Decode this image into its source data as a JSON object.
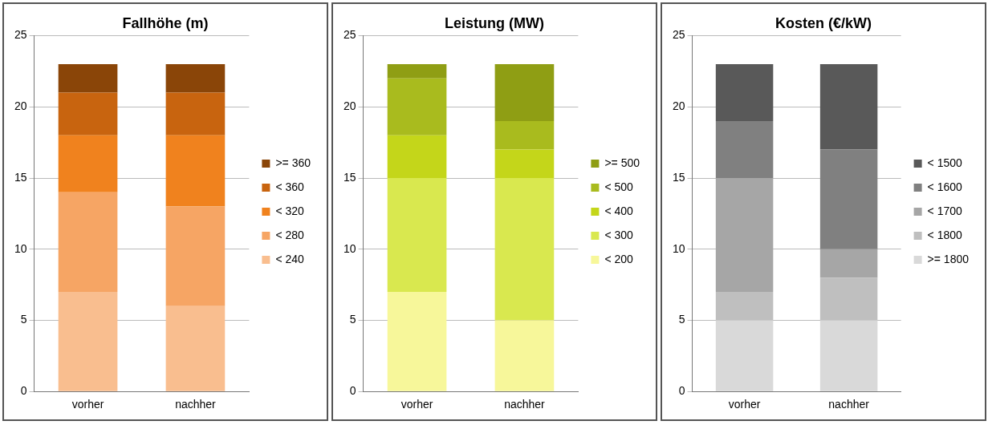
{
  "chart_data": [
    {
      "type": "bar",
      "title": "Fallhöhe (m)",
      "categories": [
        "vorher",
        "nachher"
      ],
      "stacked": true,
      "legend": "right",
      "grid": "y",
      "ylim": [
        0,
        25
      ],
      "yticks": [
        0,
        5,
        10,
        15,
        20,
        25
      ],
      "series": [
        {
          "name": "< 240",
          "color": "#f9be8f",
          "values": [
            7,
            6
          ]
        },
        {
          "name": "< 280",
          "color": "#f6a564",
          "values": [
            7,
            7
          ]
        },
        {
          "name": "< 320",
          "color": "#f0821e",
          "values": [
            4,
            5
          ]
        },
        {
          "name": "< 360",
          "color": "#c8640f",
          "values": [
            3,
            3
          ]
        },
        {
          "name": ">= 360",
          "color": "#8a4508",
          "values": [
            2,
            2
          ]
        }
      ]
    },
    {
      "type": "bar",
      "title": "Leistung (MW)",
      "categories": [
        "vorher",
        "nachher"
      ],
      "stacked": true,
      "legend": "right",
      "grid": "y",
      "ylim": [
        0,
        25
      ],
      "yticks": [
        0,
        5,
        10,
        15,
        20,
        25
      ],
      "series": [
        {
          "name": "< 200",
          "color": "#f7f79a",
          "values": [
            7,
            5
          ]
        },
        {
          "name": "< 300",
          "color": "#d9e84f",
          "values": [
            8,
            10
          ]
        },
        {
          "name": "< 400",
          "color": "#c4d61a",
          "values": [
            3,
            2
          ]
        },
        {
          "name": "< 500",
          "color": "#a9bb1e",
          "values": [
            4,
            2
          ]
        },
        {
          "name": ">= 500",
          "color": "#8f9e14",
          "values": [
            1,
            4
          ]
        }
      ]
    },
    {
      "type": "bar",
      "title": "Kosten (€/kW)",
      "categories": [
        "vorher",
        "nachher"
      ],
      "stacked": true,
      "legend": "right",
      "grid": "y",
      "ylim": [
        0,
        25
      ],
      "yticks": [
        0,
        5,
        10,
        15,
        20,
        25
      ],
      "series": [
        {
          "name": ">= 1800",
          "color": "#d9d9d9",
          "values": [
            5,
            5
          ]
        },
        {
          "name": "< 1800",
          "color": "#bfbfbf",
          "values": [
            2,
            3
          ]
        },
        {
          "name": "< 1700",
          "color": "#a6a6a6",
          "values": [
            8,
            2
          ]
        },
        {
          "name": "< 1600",
          "color": "#808080",
          "values": [
            4,
            7
          ]
        },
        {
          "name": "< 1500",
          "color": "#595959",
          "values": [
            4,
            6
          ]
        }
      ]
    }
  ]
}
